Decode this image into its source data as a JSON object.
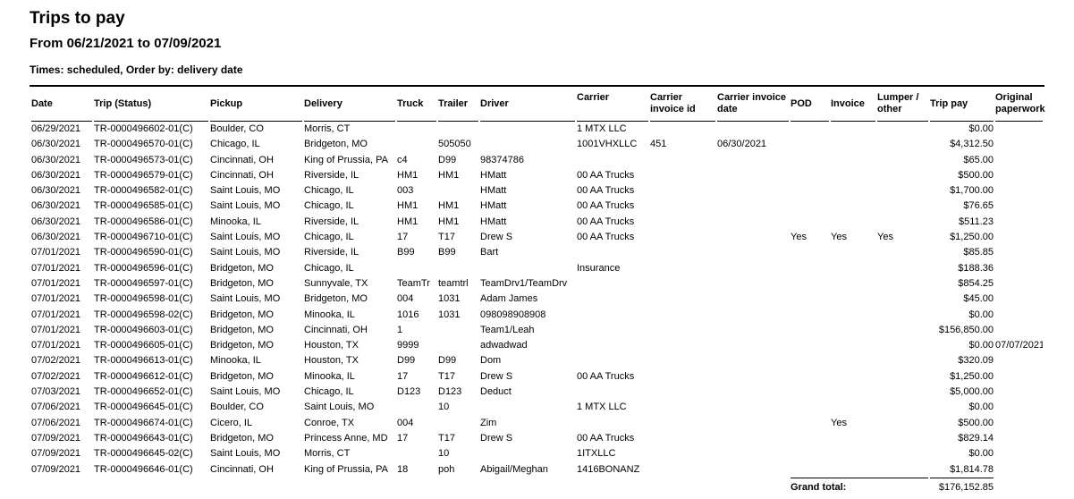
{
  "page": {
    "title": "Trips to pay",
    "date_range": "From 06/21/2021 to 07/09/2021",
    "meta": "Times: scheduled, Order by: delivery date"
  },
  "colors": {
    "text": "#000000",
    "background": "#ffffff",
    "rule": "#000000"
  },
  "table": {
    "columns": [
      "Date",
      "Trip (Status)",
      "Pickup",
      "Delivery",
      "Truck",
      "Trailer",
      "Driver",
      "Carrier",
      "Carrier invoice id",
      "Carrier invoice date",
      "POD",
      "Invoice",
      "Lumper / other",
      "Trip pay",
      "Original paperwork"
    ],
    "column_keys": [
      "date",
      "trip_status",
      "pickup",
      "delivery",
      "truck",
      "trailer",
      "driver",
      "carrier",
      "carrier_invoice_id",
      "carrier_invoice_date",
      "pod",
      "invoice",
      "lumper_other",
      "trip_pay",
      "original_paperwork"
    ],
    "rows": [
      [
        "06/29/2021",
        "TR-0000496602-01(C)",
        "Boulder, CO",
        "Morris, CT",
        "",
        "",
        "",
        "1 MTX LLC",
        "",
        "",
        "",
        "",
        "",
        "$0.00",
        ""
      ],
      [
        "06/30/2021",
        "TR-0000496570-01(C)",
        "Chicago, IL",
        "Bridgeton, MO",
        "",
        "505050",
        "",
        "1001VHXLLC",
        "451",
        "06/30/2021",
        "",
        "",
        "",
        "$4,312.50",
        ""
      ],
      [
        "06/30/2021",
        "TR-0000496573-01(C)",
        "Cincinnati, OH",
        "King of Prussia, PA",
        "c4",
        "D99",
        "98374786",
        "",
        "",
        "",
        "",
        "",
        "",
        "$65.00",
        ""
      ],
      [
        "06/30/2021",
        "TR-0000496579-01(C)",
        "Cincinnati, OH",
        "Riverside, IL",
        "HM1",
        "HM1",
        "HMatt",
        "00 AA Trucks",
        "",
        "",
        "",
        "",
        "",
        "$500.00",
        ""
      ],
      [
        "06/30/2021",
        "TR-0000496582-01(C)",
        "Saint Louis, MO",
        "Chicago, IL",
        "003",
        "",
        "HMatt",
        "00 AA Trucks",
        "",
        "",
        "",
        "",
        "",
        "$1,700.00",
        ""
      ],
      [
        "06/30/2021",
        "TR-0000496585-01(C)",
        "Saint Louis, MO",
        "Chicago, IL",
        "HM1",
        "HM1",
        "HMatt",
        "00 AA Trucks",
        "",
        "",
        "",
        "",
        "",
        "$76.65",
        ""
      ],
      [
        "06/30/2021",
        "TR-0000496586-01(C)",
        "Minooka, IL",
        "Riverside, IL",
        "HM1",
        "HM1",
        "HMatt",
        "00 AA Trucks",
        "",
        "",
        "",
        "",
        "",
        "$511.23",
        ""
      ],
      [
        "06/30/2021",
        "TR-0000496710-01(C)",
        "Saint Louis, MO",
        "Chicago, IL",
        "17",
        "T17",
        "Drew S",
        "00 AA Trucks",
        "",
        "",
        "Yes",
        "Yes",
        "Yes",
        "$1,250.00",
        ""
      ],
      [
        "07/01/2021",
        "TR-0000496590-01(C)",
        "Saint Louis, MO",
        "Riverside, IL",
        "B99",
        "B99",
        "Bart",
        "",
        "",
        "",
        "",
        "",
        "",
        "$85.85",
        ""
      ],
      [
        "07/01/2021",
        "TR-0000496596-01(C)",
        "Bridgeton, MO",
        "Chicago, IL",
        "",
        "",
        "",
        "Insurance",
        "",
        "",
        "",
        "",
        "",
        "$188.36",
        ""
      ],
      [
        "07/01/2021",
        "TR-0000496597-01(C)",
        "Bridgeton, MO",
        "Sunnyvale, TX",
        "TeamTr",
        "teamtrl",
        "TeamDrv1/TeamDrv",
        "",
        "",
        "",
        "",
        "",
        "",
        "$854.25",
        ""
      ],
      [
        "07/01/2021",
        "TR-0000496598-01(C)",
        "Saint Louis, MO",
        "Bridgeton, MO",
        "004",
        "1031",
        "Adam James",
        "",
        "",
        "",
        "",
        "",
        "",
        "$45.00",
        ""
      ],
      [
        "07/01/2021",
        "TR-0000496598-02(C)",
        "Bridgeton, MO",
        "Minooka, IL",
        "1016",
        "1031",
        "098098908908",
        "",
        "",
        "",
        "",
        "",
        "",
        "$0.00",
        ""
      ],
      [
        "07/01/2021",
        "TR-0000496603-01(C)",
        "Bridgeton, MO",
        "Cincinnati, OH",
        "1",
        "",
        "Team1/Leah",
        "",
        "",
        "",
        "",
        "",
        "",
        "$156,850.00",
        ""
      ],
      [
        "07/01/2021",
        "TR-0000496605-01(C)",
        "Bridgeton, MO",
        "Houston, TX",
        "9999",
        "",
        "adwadwad",
        "",
        "",
        "",
        "",
        "",
        "",
        "$0.00",
        "07/07/2021"
      ],
      [
        "07/02/2021",
        "TR-0000496613-01(C)",
        "Minooka, IL",
        "Houston, TX",
        "D99",
        "D99",
        "Dom",
        "",
        "",
        "",
        "",
        "",
        "",
        "$320.09",
        ""
      ],
      [
        "07/02/2021",
        "TR-0000496612-01(C)",
        "Bridgeton, MO",
        "Minooka, IL",
        "17",
        "T17",
        "Drew S",
        "00 AA Trucks",
        "",
        "",
        "",
        "",
        "",
        "$1,250.00",
        ""
      ],
      [
        "07/03/2021",
        "TR-0000496652-01(C)",
        "Saint Louis, MO",
        "Chicago, IL",
        "D123",
        "D123",
        "Deduct",
        "",
        "",
        "",
        "",
        "",
        "",
        "$5,000.00",
        ""
      ],
      [
        "07/06/2021",
        "TR-0000496645-01(C)",
        "Boulder, CO",
        "Saint Louis, MO",
        "",
        "10",
        "",
        "1 MTX LLC",
        "",
        "",
        "",
        "",
        "",
        "$0.00",
        ""
      ],
      [
        "07/06/2021",
        "TR-0000496674-01(C)",
        "Cicero, IL",
        "Conroe, TX",
        "004",
        "",
        "Zim",
        "",
        "",
        "",
        "",
        "Yes",
        "",
        "$500.00",
        ""
      ],
      [
        "07/09/2021",
        "TR-0000496643-01(C)",
        "Bridgeton, MO",
        "Princess Anne, MD",
        "17",
        "T17",
        "Drew S",
        "00 AA Trucks",
        "",
        "",
        "",
        "",
        "",
        "$829.14",
        ""
      ],
      [
        "07/09/2021",
        "TR-0000496645-02(C)",
        "Saint Louis, MO",
        "Morris, CT",
        "",
        "10",
        "",
        "1ITXLLC",
        "",
        "",
        "",
        "",
        "",
        "$0.00",
        ""
      ],
      [
        "07/09/2021",
        "TR-0000496646-01(C)",
        "Cincinnati, OH",
        "King of Prussia, PA",
        "18",
        "poh",
        "Abigail/Meghan",
        "1416BONANZ",
        "",
        "",
        "",
        "",
        "",
        "$1,814.78",
        ""
      ]
    ],
    "grand_total_label": "Grand total:",
    "grand_total_value": "$176,152.85"
  }
}
